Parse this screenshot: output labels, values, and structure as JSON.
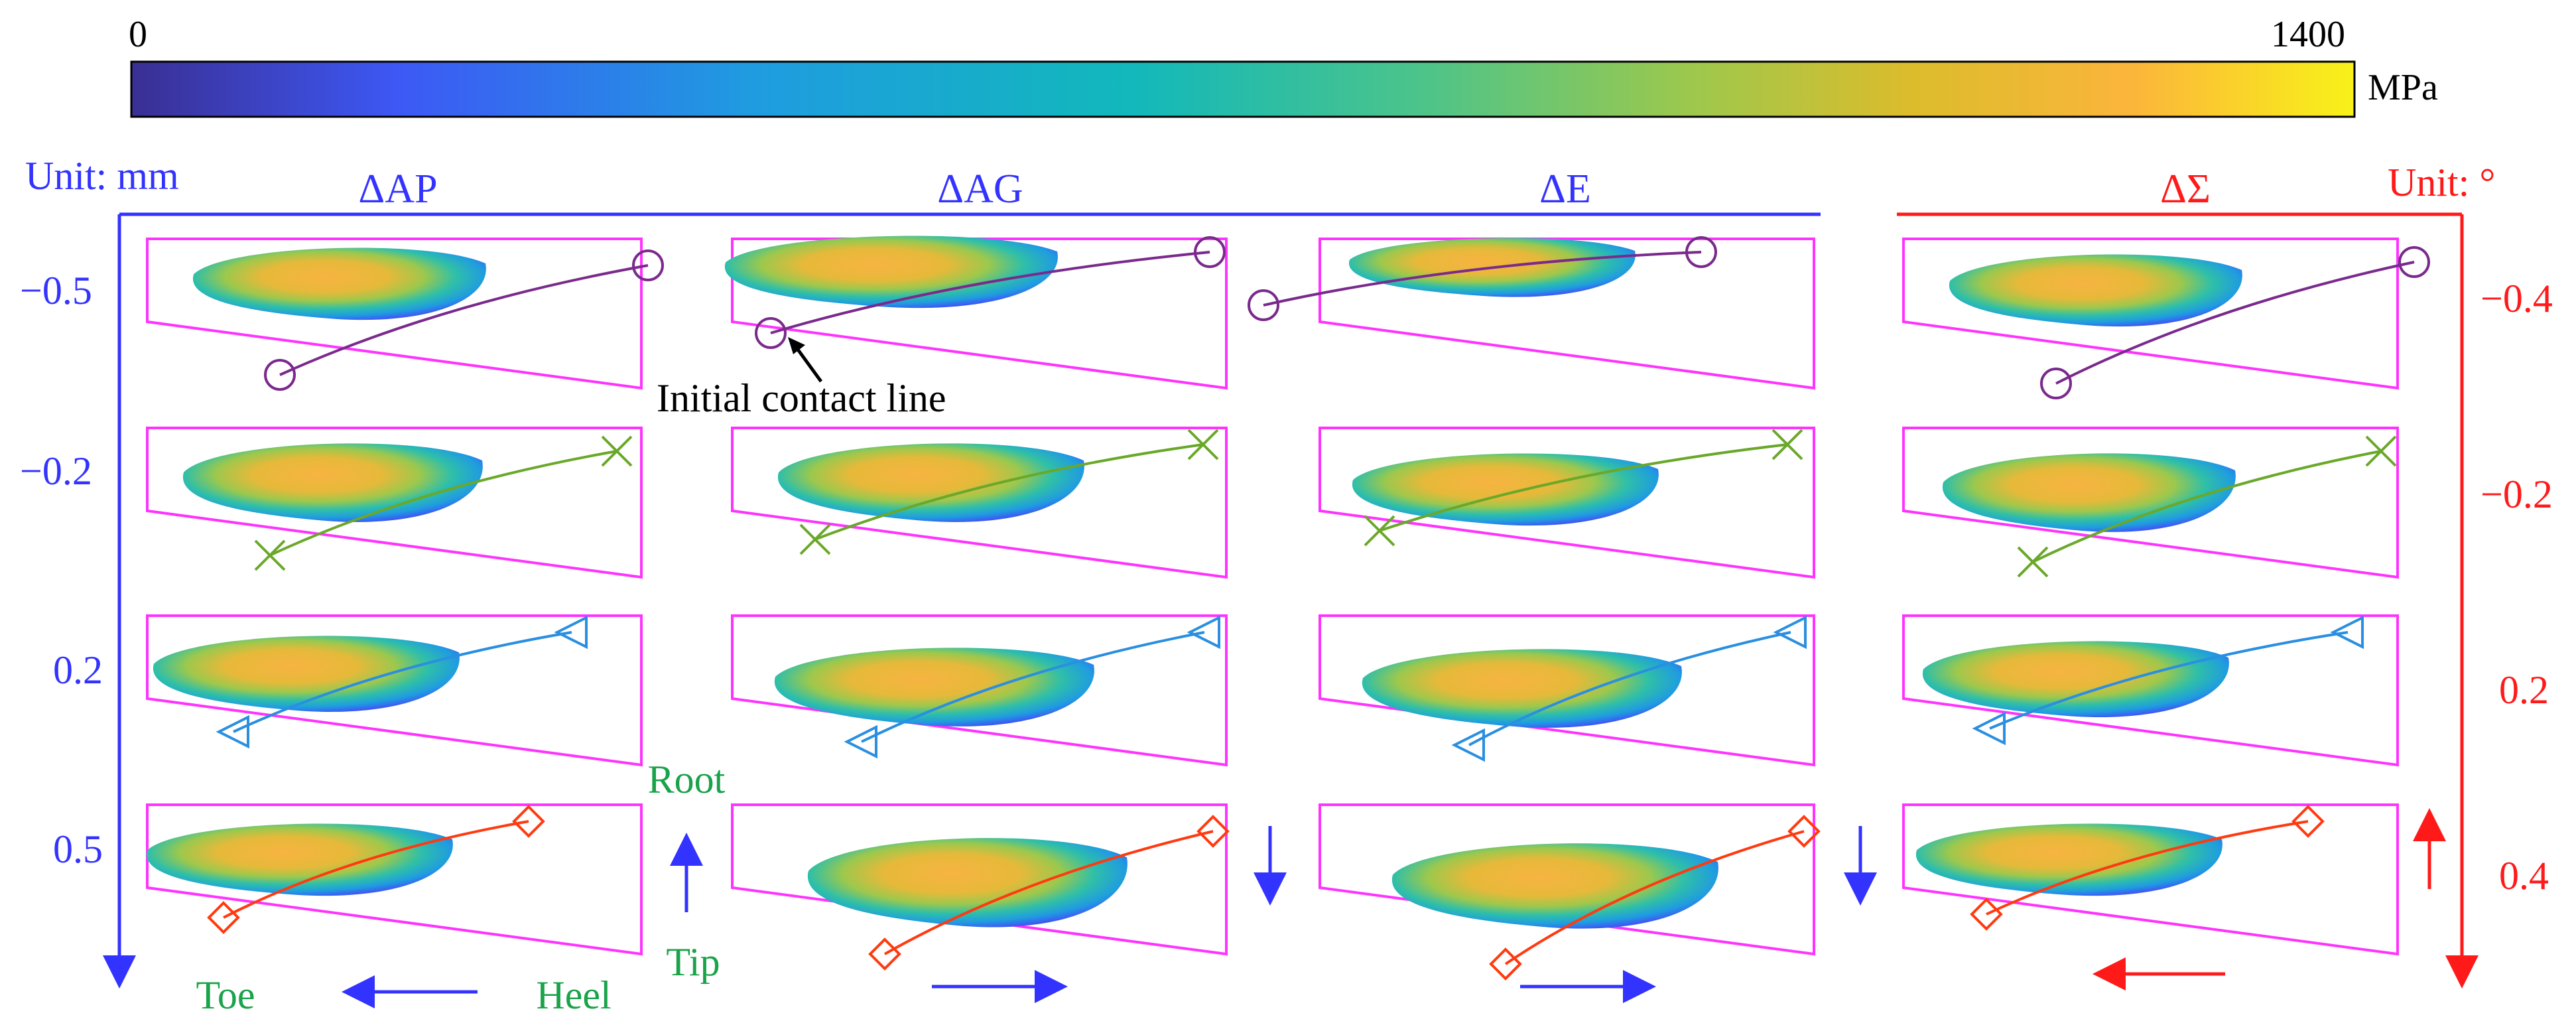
{
  "colorbar": {
    "min_label": "0",
    "max_label": "1400",
    "unit": "MPa"
  },
  "left_axis": {
    "unit_label": "Unit: mm",
    "ticks": [
      "−0.5",
      "−0.2",
      "0.2",
      "0.5"
    ]
  },
  "right_axis": {
    "unit_label": "Unit: °",
    "ticks": [
      "−0.4",
      "−0.2",
      "0.2",
      "0.4"
    ]
  },
  "columns": [
    "ΔAP",
    "ΔAG",
    "ΔE",
    "ΔΣ"
  ],
  "annotation": "Initial contact line",
  "directions": {
    "root": "Root",
    "tip": "Tip",
    "toe": "Toe",
    "heel": "Heel"
  },
  "row_markers": [
    "circle",
    "cross",
    "triangle",
    "diamond"
  ],
  "colors": {
    "left_axis": "#3333ff",
    "right_axis": "#ff1a1a",
    "panel_border": "#ff33ff",
    "direction_text": "#1aa34a",
    "row_lines": [
      "#7a2a8c",
      "#6aa82a",
      "#2a8fe0",
      "#ff3a10"
    ],
    "colormap": [
      "#3a2f93",
      "#3d58f5",
      "#1f9ce0",
      "#12b8bb",
      "#4cc48a",
      "#9cc84d",
      "#dcbc2c",
      "#fbb53b",
      "#f8f219"
    ]
  }
}
